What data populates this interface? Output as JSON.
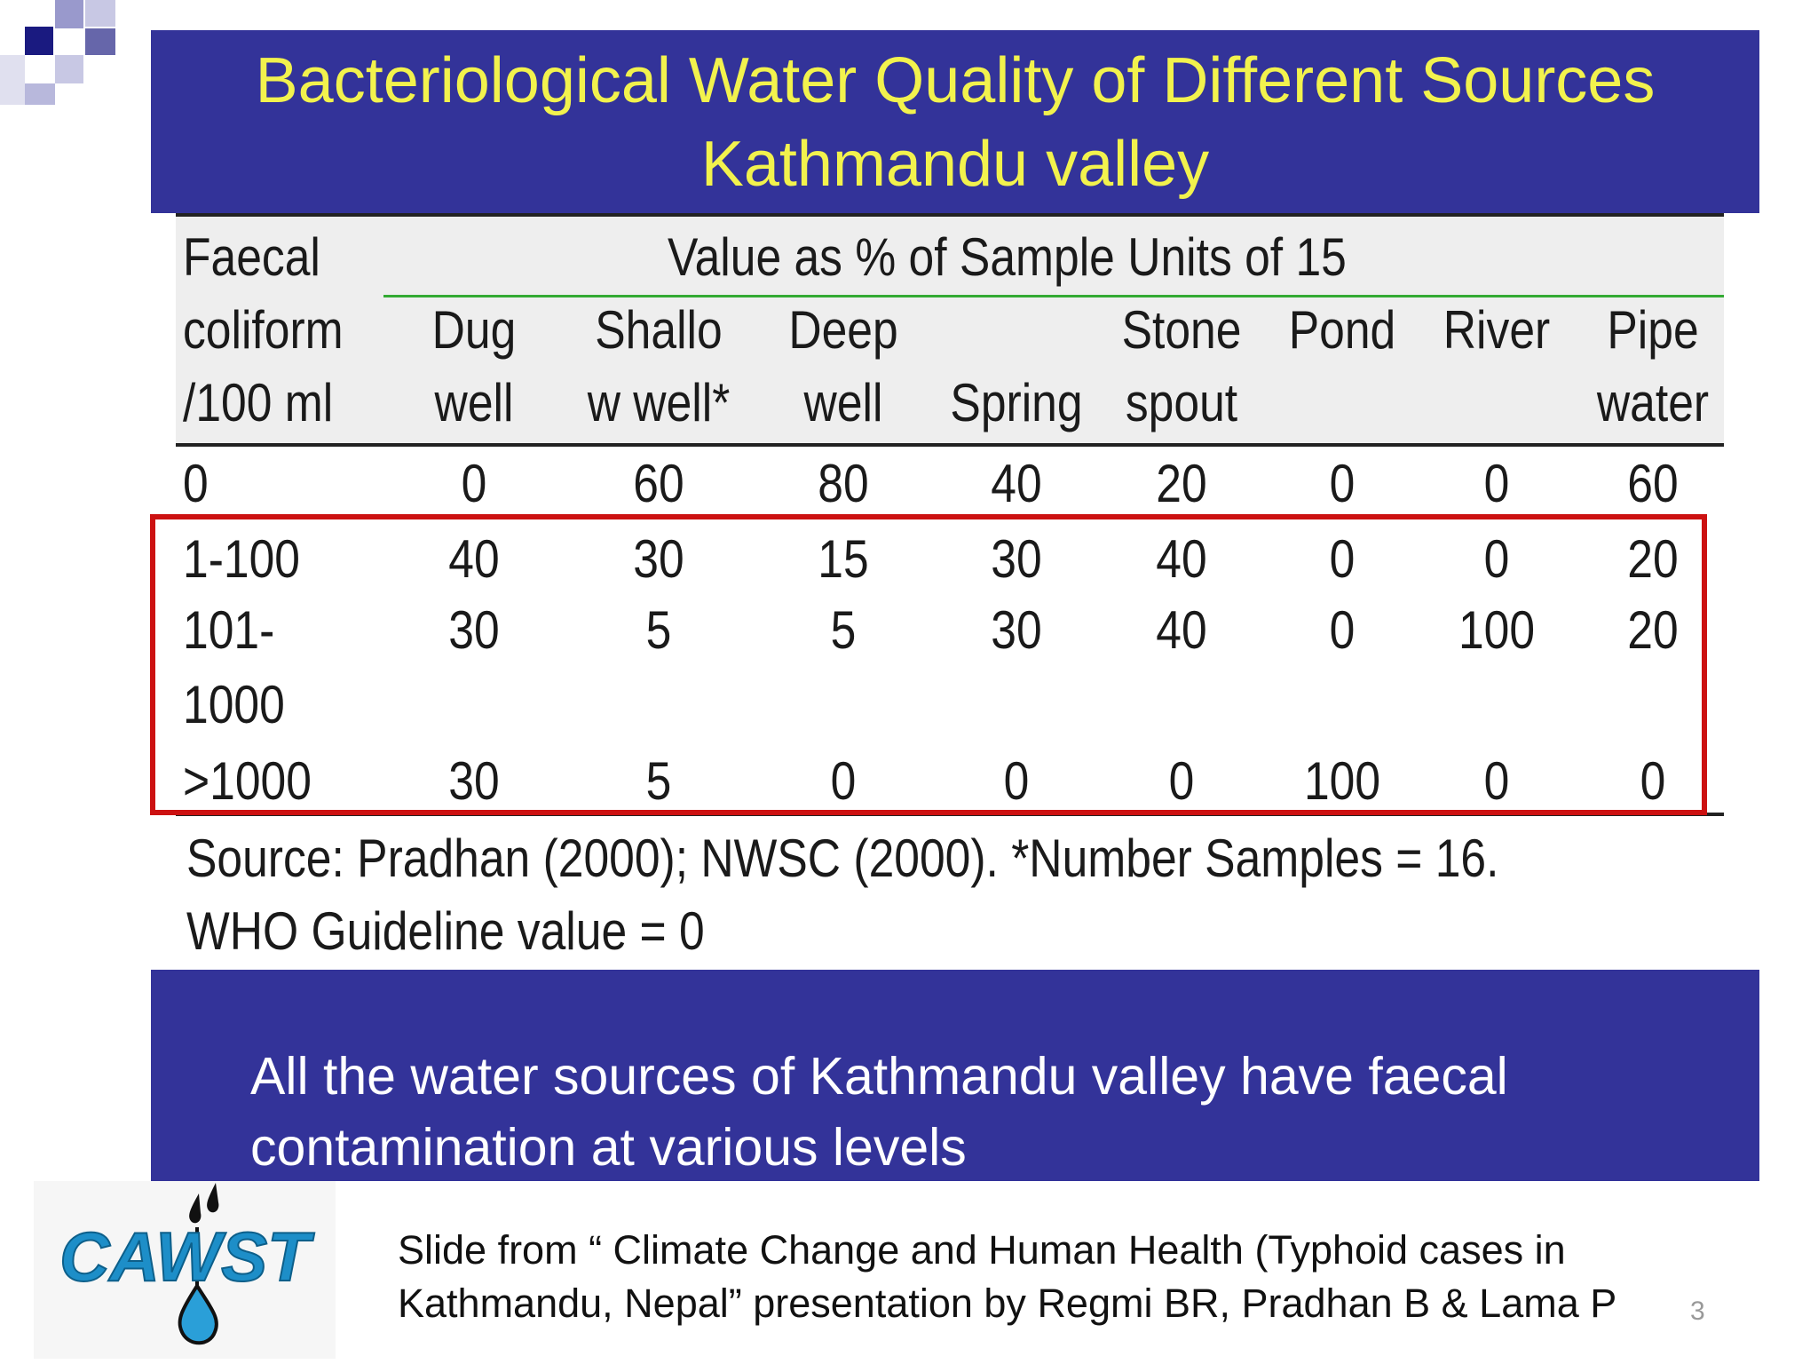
{
  "title": {
    "line1": "Bacteriological Water Quality of Different Sources",
    "line2": "Kathmandu valley"
  },
  "table": {
    "row_header_lines": [
      "Faecal",
      "coliform",
      "/100 ml"
    ],
    "group_header": "Value as % of Sample  Units of 15",
    "columns": [
      {
        "line1": "Dug",
        "line2": "well"
      },
      {
        "line1": "Shallo",
        "line2": "w well*"
      },
      {
        "line1": "Deep",
        "line2": "well"
      },
      {
        "line1": "",
        "line2": "Spring"
      },
      {
        "line1": "Stone",
        "line2": "spout"
      },
      {
        "line1": "Pond",
        "line2": ""
      },
      {
        "line1": "River",
        "line2": ""
      },
      {
        "line1": "Pipe",
        "line2": "water"
      }
    ],
    "rows": [
      {
        "label": "0",
        "label2": "",
        "values": [
          "0",
          "60",
          "80",
          "40",
          "20",
          "0",
          "0",
          "60"
        ]
      },
      {
        "label": "1-100",
        "label2": "",
        "values": [
          "40",
          "30",
          "15",
          "30",
          "40",
          "0",
          "0",
          "20"
        ]
      },
      {
        "label": "101-",
        "label2": "1000",
        "values": [
          "30",
          "5",
          "5",
          "30",
          "40",
          "0",
          "100",
          "20"
        ]
      },
      {
        "label": ">1000",
        "label2": "",
        "values": [
          "30",
          "5",
          "0",
          "0",
          "0",
          "100",
          "0",
          "0"
        ]
      }
    ]
  },
  "source_note": {
    "line1": "Source: Pradhan (2000); NWSC (2000). *Number Samples = 16.",
    "line2": "WHO Guideline value = 0"
  },
  "conclusion": {
    "line1": "All the water sources of Kathmandu valley have faecal",
    "line2": "contamination at various levels"
  },
  "logo": {
    "text": "CAWST",
    "icon": "water-drop-icon"
  },
  "credit": {
    "line1": "Slide from “ Climate Change and Human Health (Typhoid cases in",
    "line2": "Kathmandu, Nepal” presentation by Regmi BR, Pradhan B & Lama P"
  },
  "slide_number": "3",
  "colors": {
    "banner": "#333399",
    "title_text": "#f2f24d",
    "highlight": "#cc1111",
    "rule_green": "#33aa33"
  }
}
